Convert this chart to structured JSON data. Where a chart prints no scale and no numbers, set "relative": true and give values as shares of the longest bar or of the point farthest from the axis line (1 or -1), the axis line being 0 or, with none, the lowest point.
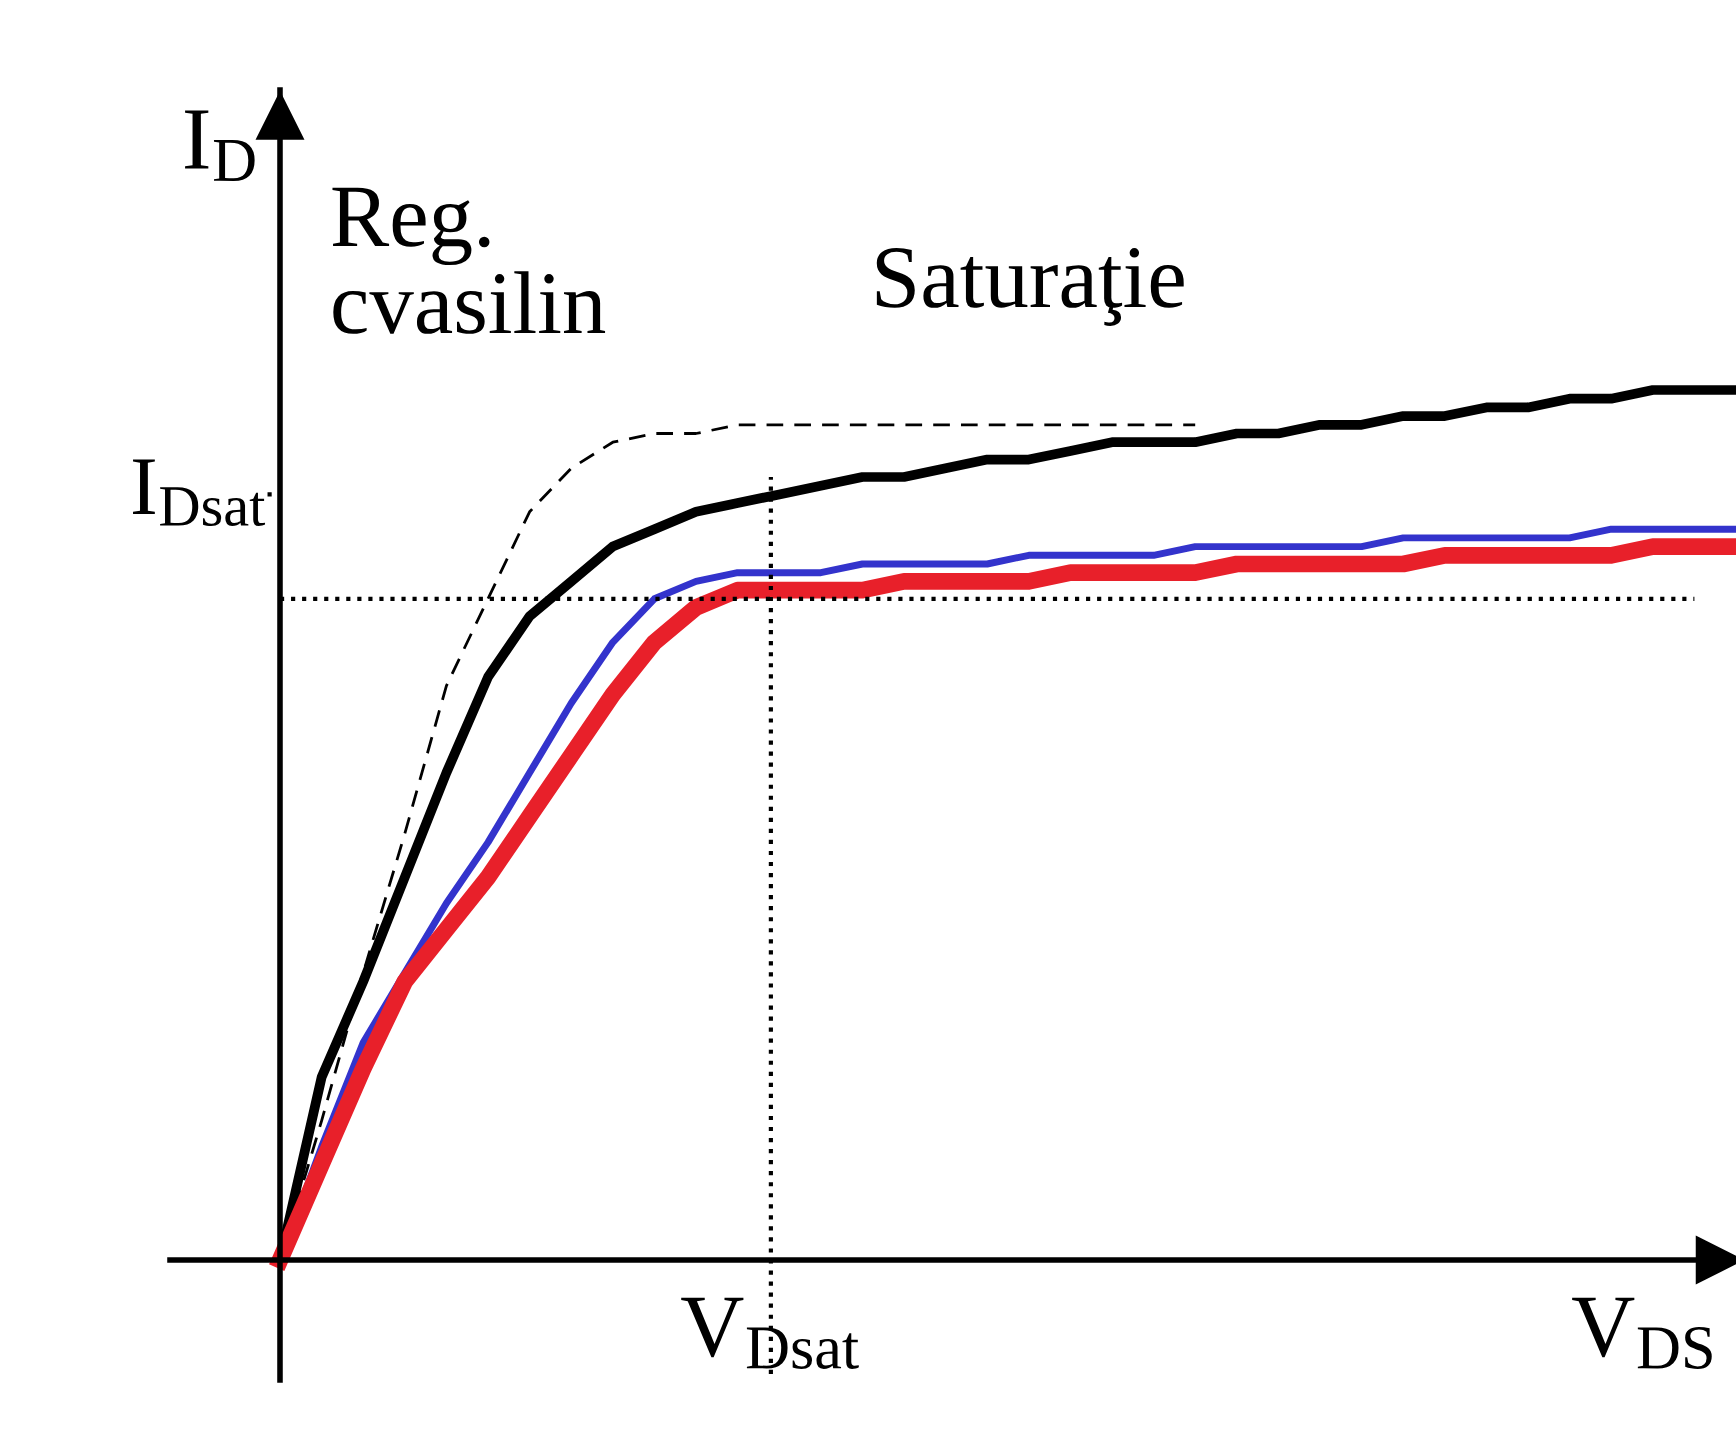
{
  "chart_data": {
    "type": "line",
    "relative": true,
    "xlabel": "V$_{DS}$",
    "ylabel": "I$_{D}$",
    "categories": [
      null,
      null,
      null,
      null,
      null,
      null,
      null,
      null,
      null,
      null,
      null,
      null,
      null,
      null,
      null,
      null,
      null,
      null,
      null,
      null,
      null,
      null,
      null,
      null,
      null,
      null,
      null,
      null,
      null,
      null,
      null,
      null,
      null,
      null,
      null,
      null
    ],
    "series": [
      {
        "color": "#000000",
        "line_style": "dashed",
        "values": [
          0,
          0.16,
          0.33,
          0.49,
          0.66,
          0.76,
          0.86,
          0.91,
          0.94,
          0.95,
          0.95,
          0.96,
          0.96,
          0.96,
          0.96,
          0.96,
          0.96,
          0.96,
          0.96,
          0.96,
          0.96,
          0.96,
          0.96,
          null,
          null,
          null,
          null,
          null,
          null,
          null,
          null,
          null,
          null,
          null,
          null,
          null
        ]
      },
      {
        "color": "#000000",
        "values": [
          0,
          0.21,
          0.32,
          0.44,
          0.56,
          0.67,
          0.74,
          0.78,
          0.82,
          0.84,
          0.86,
          0.87,
          0.88,
          0.89,
          0.9,
          0.9,
          0.91,
          0.92,
          0.92,
          0.93,
          0.94,
          0.94,
          0.94,
          0.95,
          0.95,
          0.96,
          0.96,
          0.97,
          0.97,
          0.98,
          0.98,
          0.99,
          0.99,
          1.0,
          1.0,
          1.0
        ]
      },
      {
        "color": "#3333cc",
        "values": [
          0,
          0.13,
          0.25,
          0.33,
          0.41,
          0.48,
          0.56,
          0.64,
          0.71,
          0.76,
          0.78,
          0.79,
          0.79,
          0.79,
          0.8,
          0.8,
          0.8,
          0.8,
          0.81,
          0.81,
          0.81,
          0.81,
          0.82,
          0.82,
          0.82,
          0.82,
          0.82,
          0.83,
          0.83,
          0.83,
          0.83,
          0.83,
          0.84,
          0.84,
          0.84,
          0.84
        ]
      },
      {
        "color": "#e8202a",
        "values": [
          0,
          0.11,
          0.22,
          0.32,
          0.38,
          0.44,
          0.51,
          0.58,
          0.65,
          0.71,
          0.75,
          0.77,
          0.77,
          0.77,
          0.77,
          0.78,
          0.78,
          0.78,
          0.78,
          0.79,
          0.79,
          0.79,
          0.79,
          0.8,
          0.8,
          0.8,
          0.8,
          0.8,
          0.81,
          0.81,
          0.81,
          0.81,
          0.81,
          0.82,
          0.82,
          0.82
        ]
      }
    ],
    "ref_lines": [
      {
        "axis": "y",
        "value": 0.88,
        "label": "I$_{Dsat}$",
        "line_style": "dotted",
        "color": "#000000"
      },
      {
        "axis": "y",
        "value": 0.76,
        "line_style": "dotted",
        "color": "#000000"
      }
    ],
    "annotations": [
      "Reg.\ncvasilin",
      "Saturaţie",
      "V$_{Dsat}$"
    ],
    "marker": "none"
  }
}
